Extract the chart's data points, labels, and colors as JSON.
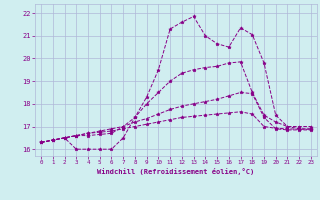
{
  "xlabel": "Windchill (Refroidissement éolien,°C)",
  "background_color": "#d0eef0",
  "grid_color": "#b0b8d8",
  "line_color": "#880088",
  "xlim": [
    -0.5,
    23.5
  ],
  "ylim": [
    15.7,
    22.4
  ],
  "xtick_labels": [
    "0",
    "1",
    "2",
    "3",
    "4",
    "5",
    "6",
    "7",
    "8",
    "9",
    "10",
    "11",
    "12",
    "13",
    "14",
    "15",
    "16",
    "17",
    "18",
    "19",
    "20",
    "21",
    "22",
    "23"
  ],
  "ytick_labels": [
    "16",
    "17",
    "18",
    "19",
    "20",
    "21",
    "22"
  ],
  "series": [
    [
      16.3,
      16.4,
      16.5,
      16.0,
      16.0,
      16.0,
      16.0,
      16.5,
      17.4,
      18.3,
      19.5,
      21.3,
      21.6,
      21.85,
      21.0,
      20.65,
      20.5,
      21.35,
      21.05,
      19.8,
      17.5,
      17.0,
      16.9,
      16.9
    ],
    [
      16.3,
      16.4,
      16.5,
      16.6,
      16.6,
      16.65,
      16.7,
      17.0,
      17.4,
      18.0,
      18.5,
      19.0,
      19.35,
      19.5,
      19.6,
      19.65,
      19.8,
      19.85,
      18.5,
      17.5,
      17.2,
      17.0,
      17.0,
      17.0
    ],
    [
      16.3,
      16.4,
      16.5,
      16.6,
      16.7,
      16.8,
      16.9,
      17.0,
      17.2,
      17.35,
      17.55,
      17.75,
      17.9,
      18.0,
      18.1,
      18.2,
      18.35,
      18.5,
      18.45,
      17.4,
      16.9,
      16.85,
      16.85,
      16.85
    ],
    [
      16.3,
      16.4,
      16.5,
      16.6,
      16.7,
      16.75,
      16.8,
      16.9,
      17.0,
      17.1,
      17.2,
      17.3,
      17.4,
      17.45,
      17.5,
      17.55,
      17.6,
      17.65,
      17.55,
      17.0,
      16.92,
      16.9,
      16.88,
      16.88
    ]
  ]
}
